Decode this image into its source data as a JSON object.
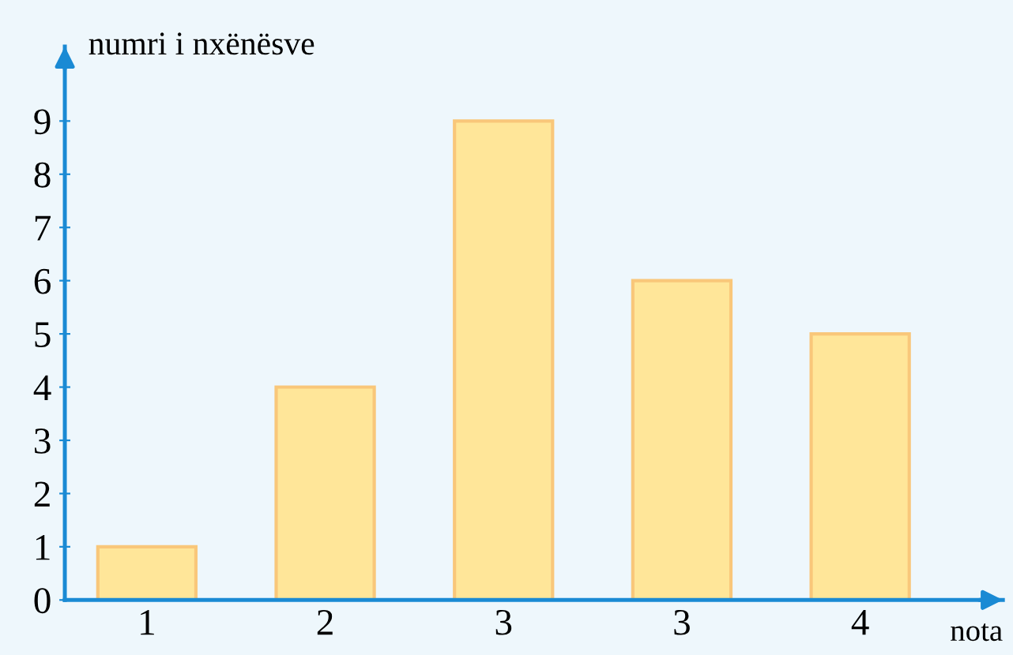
{
  "chart_data": {
    "type": "bar",
    "xlabel": "nota",
    "ylabel": "numri i nxënësve",
    "categories": [
      "1",
      "2",
      "3",
      "3",
      "4"
    ],
    "values": [
      1,
      4,
      9,
      6,
      5
    ],
    "color": "#ffe699",
    "ylim": [
      0,
      10.4
    ],
    "yticks": [
      0,
      1,
      2,
      3,
      4,
      5,
      6,
      7,
      8,
      9
    ],
    "grid": false,
    "legend": false
  }
}
